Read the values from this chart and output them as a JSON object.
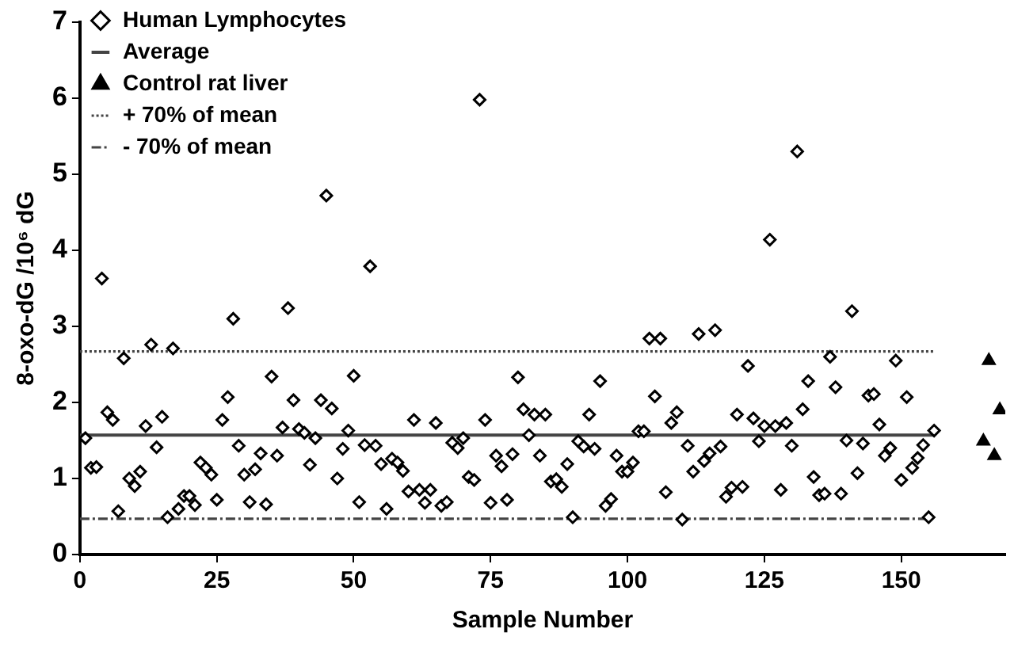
{
  "chart_data": {
    "type": "scatter",
    "xlabel": "Sample Number",
    "ylabel": "8-oxo-dG /10⁶ dG",
    "xlim": [
      0,
      169
    ],
    "xticks": [
      0,
      25,
      50,
      75,
      100,
      125,
      150
    ],
    "ylim": [
      0,
      7
    ],
    "yticks": [
      0,
      1,
      2,
      3,
      4,
      5,
      6,
      7
    ],
    "grid": false,
    "legend": "top left",
    "series": [
      {
        "name": "Human Lymphocytes",
        "type": "scatter",
        "marker": "diamond",
        "color": "#000000",
        "x": [
          1,
          2,
          3,
          4,
          5,
          6,
          7,
          8,
          9,
          10,
          11,
          12,
          13,
          14,
          15,
          16,
          17,
          18,
          19,
          20,
          21,
          22,
          23,
          24,
          25,
          26,
          27,
          28,
          29,
          30,
          31,
          32,
          33,
          34,
          35,
          36,
          37,
          38,
          39,
          40,
          41,
          42,
          43,
          44,
          45,
          46,
          47,
          48,
          49,
          50,
          51,
          52,
          53,
          54,
          55,
          56,
          57,
          58,
          59,
          60,
          61,
          62,
          63,
          64,
          65,
          66,
          67,
          68,
          69,
          70,
          71,
          72,
          73,
          74,
          75,
          76,
          77,
          78,
          79,
          80,
          81,
          82,
          83,
          84,
          85,
          86,
          87,
          88,
          89,
          90,
          91,
          92,
          93,
          94,
          95,
          96,
          97,
          98,
          99,
          100,
          101,
          102,
          103,
          104,
          105,
          106,
          107,
          108,
          109,
          110,
          111,
          112,
          113,
          114,
          115,
          116,
          117,
          118,
          119,
          120,
          121,
          122,
          123,
          124,
          125,
          126,
          127,
          128,
          129,
          130,
          131,
          132,
          133,
          134,
          135,
          136,
          137,
          138,
          139,
          140,
          141,
          142,
          143,
          144,
          145,
          146,
          147,
          148,
          149,
          150,
          151,
          152,
          153,
          154,
          155,
          156
        ],
        "values": [
          1.53,
          1.14,
          1.15,
          3.63,
          1.87,
          1.77,
          0.57,
          2.58,
          1.0,
          0.9,
          1.09,
          1.69,
          2.76,
          1.41,
          1.81,
          0.49,
          2.71,
          0.6,
          0.77,
          0.77,
          0.65,
          1.21,
          1.14,
          1.05,
          0.72,
          1.77,
          2.07,
          3.1,
          1.43,
          1.05,
          0.69,
          1.12,
          1.33,
          0.66,
          2.34,
          1.3,
          1.67,
          3.24,
          2.03,
          1.65,
          1.6,
          1.18,
          1.53,
          2.03,
          4.72,
          1.92,
          1.0,
          1.39,
          1.63,
          2.35,
          0.69,
          1.44,
          3.79,
          1.43,
          1.19,
          0.6,
          1.26,
          1.21,
          1.1,
          0.83,
          1.77,
          0.85,
          0.68,
          0.85,
          1.73,
          0.64,
          0.69,
          1.47,
          1.4,
          1.53,
          1.02,
          0.98,
          5.98,
          1.77,
          0.68,
          1.3,
          1.16,
          0.72,
          1.32,
          2.33,
          1.91,
          1.57,
          1.84,
          1.3,
          1.84,
          0.96,
          0.99,
          0.89,
          1.19,
          0.49,
          1.49,
          1.42,
          1.84,
          1.39,
          2.28,
          0.64,
          0.73,
          1.3,
          1.09,
          1.09,
          1.21,
          1.62,
          1.62,
          2.84,
          2.08,
          2.84,
          0.82,
          1.73,
          1.87,
          0.46,
          1.43,
          1.09,
          2.9,
          1.23,
          1.33,
          2.95,
          1.42,
          0.76,
          0.88,
          1.84,
          0.89,
          2.48,
          1.79,
          1.49,
          1.69,
          4.14,
          1.69,
          0.85,
          1.73,
          1.43,
          5.3,
          1.91,
          2.28,
          1.02,
          0.78,
          0.8,
          2.6,
          2.2,
          0.8,
          1.5,
          3.2,
          1.07,
          1.46,
          2.09,
          2.11,
          1.71,
          1.3,
          1.4,
          2.55,
          0.98,
          2.07,
          1.14,
          1.27,
          1.44,
          0.49,
          1.63
        ]
      },
      {
        "name": "Average",
        "type": "line",
        "line_style": "solid",
        "color": "#444444",
        "x": [
          0,
          156
        ],
        "values": [
          1.57,
          1.57
        ]
      },
      {
        "name": "Control rat liver",
        "type": "scatter",
        "marker": "triangle",
        "color": "#000000",
        "x": [
          165,
          166,
          167,
          168
        ],
        "values": [
          1.49,
          2.55,
          1.3,
          1.9
        ]
      },
      {
        "name": "+ 70% of mean",
        "type": "line",
        "line_style": "dotted",
        "color": "#444444",
        "x": [
          0,
          156
        ],
        "values": [
          2.67,
          2.67
        ]
      },
      {
        "name": "- 70% of mean",
        "type": "line",
        "line_style": "dashdot",
        "color": "#444444",
        "x": [
          0,
          156
        ],
        "values": [
          0.47,
          0.47
        ]
      }
    ]
  }
}
